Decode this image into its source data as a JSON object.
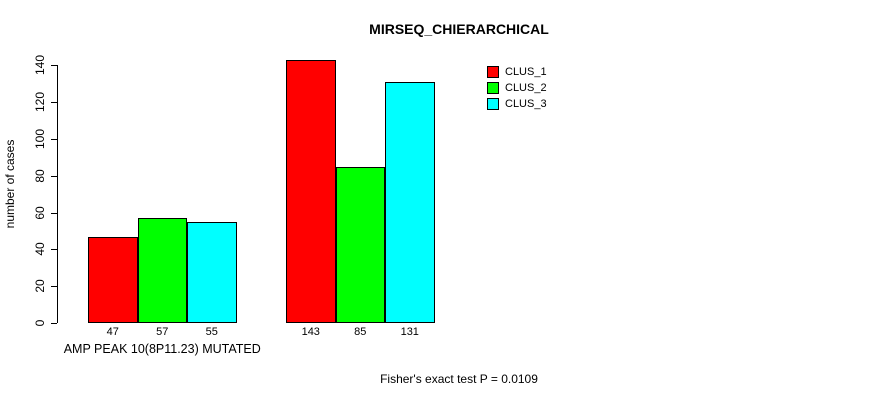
{
  "chart_data": {
    "type": "bar",
    "title": "MIRSEQ_CHIERARCHICAL",
    "ylabel": "number of cases",
    "xlabel": "",
    "ylim": [
      0,
      140
    ],
    "yticks": [
      0,
      20,
      40,
      60,
      80,
      100,
      120,
      140
    ],
    "grid": false,
    "legend_position": "top-right",
    "categories": [
      "AMP PEAK 10(8P11.23) MUTATED",
      ""
    ],
    "series": [
      {
        "name": "CLUS_1",
        "color": "#ff0000",
        "values": [
          47,
          143
        ]
      },
      {
        "name": "CLUS_2",
        "color": "#00ff00",
        "values": [
          57,
          85
        ]
      },
      {
        "name": "CLUS_3",
        "color": "#00ffff",
        "values": [
          55,
          131
        ]
      }
    ],
    "bar_value_labels": [
      [
        "47",
        "57",
        "55"
      ],
      [
        "143",
        "85",
        "131"
      ]
    ],
    "bar_border_color": "#000000",
    "footnote": "Fisher's exact test P = 0.0109"
  }
}
